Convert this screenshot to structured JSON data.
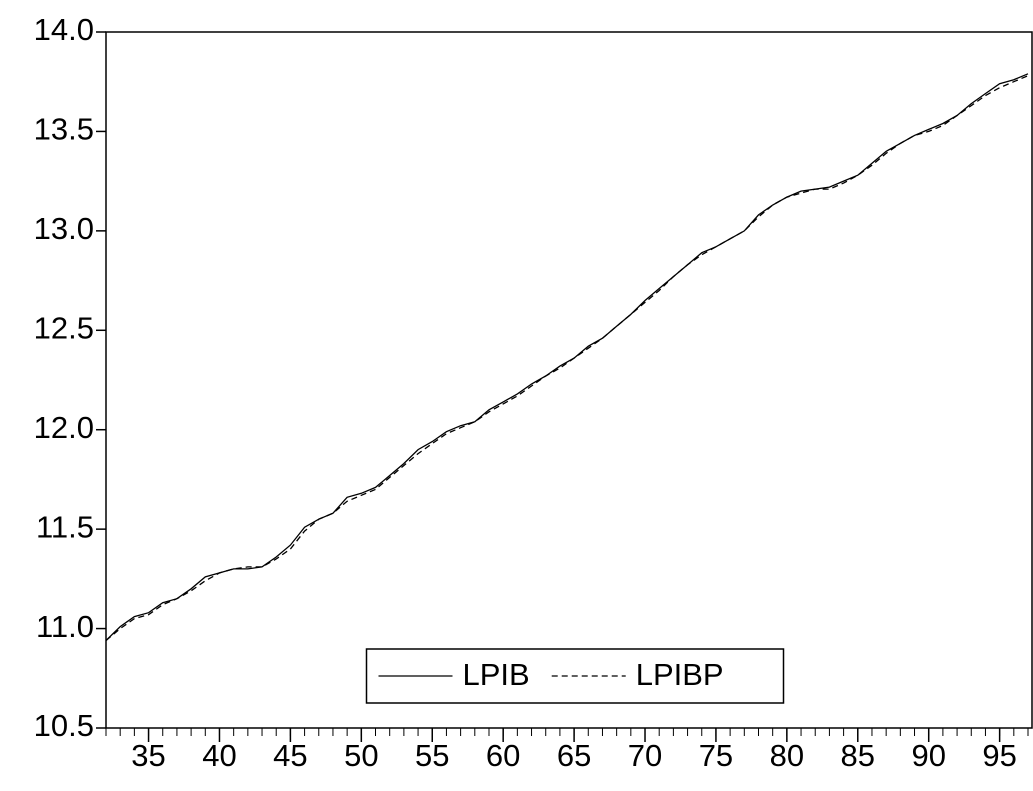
{
  "chart_data": {
    "type": "line",
    "x": [
      32,
      33,
      34,
      35,
      36,
      37,
      38,
      39,
      40,
      41,
      42,
      43,
      44,
      45,
      46,
      47,
      48,
      49,
      50,
      51,
      52,
      53,
      54,
      55,
      56,
      57,
      58,
      59,
      60,
      61,
      62,
      63,
      64,
      65,
      66,
      67,
      68,
      69,
      70,
      71,
      72,
      73,
      74,
      75,
      76,
      77,
      78,
      79,
      80,
      81,
      82,
      83,
      84,
      85,
      86,
      87,
      88,
      89,
      90,
      91,
      92,
      93,
      94,
      95,
      96,
      97
    ],
    "series": [
      {
        "name": "LPIB",
        "color": "#000000",
        "dash": "solid",
        "values": [
          10.94,
          11.01,
          11.06,
          11.08,
          11.13,
          11.15,
          11.2,
          11.26,
          11.28,
          11.3,
          11.3,
          11.31,
          11.36,
          11.42,
          11.51,
          11.55,
          11.58,
          11.66,
          11.68,
          11.71,
          11.77,
          11.83,
          11.9,
          11.94,
          11.99,
          12.02,
          12.04,
          12.1,
          12.14,
          12.18,
          12.23,
          12.27,
          12.32,
          12.36,
          12.42,
          12.46,
          12.52,
          12.58,
          12.65,
          12.71,
          12.77,
          12.83,
          12.89,
          12.92,
          12.96,
          13.0,
          13.08,
          13.13,
          13.17,
          13.2,
          13.21,
          13.22,
          13.25,
          13.28,
          13.34,
          13.4,
          13.44,
          13.48,
          13.51,
          13.54,
          13.58,
          13.64,
          13.69,
          13.74,
          13.76,
          13.79
        ]
      },
      {
        "name": "LPIBP",
        "color": "#000000",
        "dash": "dashed",
        "values": [
          10.94,
          11.0,
          11.05,
          11.07,
          11.12,
          11.15,
          11.19,
          11.24,
          11.28,
          11.3,
          11.31,
          11.31,
          11.35,
          11.4,
          11.49,
          11.55,
          11.58,
          11.64,
          11.67,
          11.7,
          11.76,
          11.82,
          11.88,
          11.93,
          11.98,
          12.01,
          12.04,
          12.09,
          12.13,
          12.17,
          12.22,
          12.27,
          12.31,
          12.36,
          12.41,
          12.46,
          12.52,
          12.58,
          12.64,
          12.7,
          12.77,
          12.83,
          12.88,
          12.92,
          12.96,
          13.0,
          13.07,
          13.13,
          13.17,
          13.19,
          13.21,
          13.21,
          13.24,
          13.28,
          13.33,
          13.39,
          13.44,
          13.48,
          13.5,
          13.53,
          13.58,
          13.63,
          13.68,
          13.72,
          13.75,
          13.78
        ]
      }
    ],
    "xlim": [
      32,
      97
    ],
    "xticks": [
      35,
      40,
      45,
      50,
      55,
      60,
      65,
      70,
      75,
      80,
      85,
      90,
      95
    ],
    "ylim": [
      10.5,
      14
    ],
    "yticks": [
      {
        "value": 10.5,
        "label": "10.5"
      },
      {
        "value": 11,
        "label": "11.0"
      },
      {
        "value": 11.5,
        "label": "11.5"
      },
      {
        "value": 12,
        "label": "12.0"
      },
      {
        "value": 12.5,
        "label": "12.5"
      },
      {
        "value": 13,
        "label": "13.0"
      },
      {
        "value": 13.5,
        "label": "13.5"
      },
      {
        "value": 14,
        "label": "14.0"
      }
    ],
    "grid": false,
    "legend": "bottom-center"
  }
}
